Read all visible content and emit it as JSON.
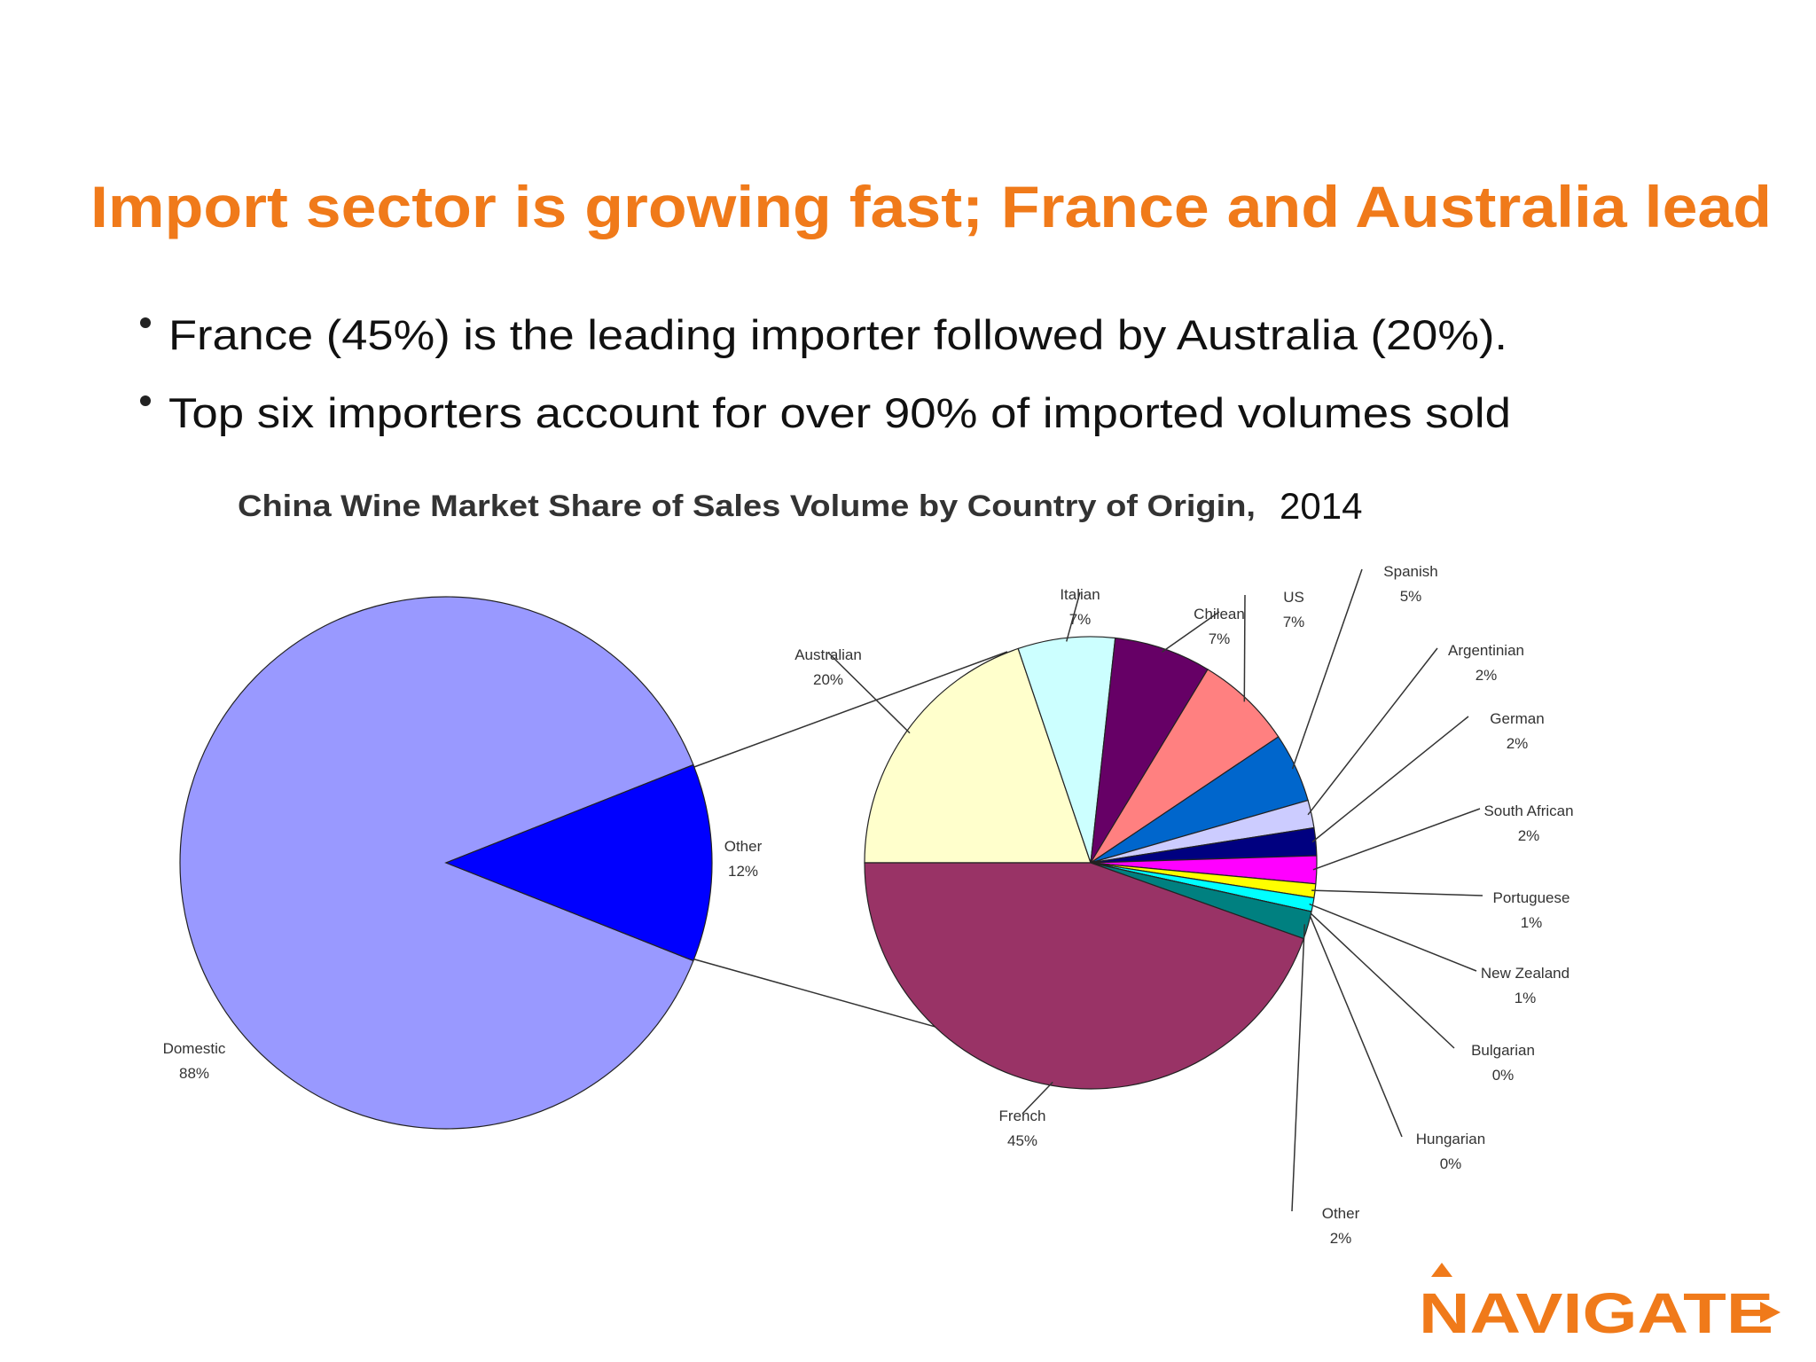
{
  "title": "Import sector is growing fast; France and Australia lead",
  "bullets": [
    "France (45%) is the leading importer followed by Australia (20%).",
    "Top six importers account for over 90% of imported volumes sold"
  ],
  "chart_data": [
    {
      "type": "pie",
      "title": "China Wine Market Share of Sales Volume by Country of Origin,",
      "subtitle": "2014",
      "categories": [
        "Domestic",
        "Other"
      ],
      "values": [
        88,
        12
      ],
      "value_labels": [
        "88%",
        "12%"
      ],
      "colors": [
        "#9999ff",
        "#0000ff"
      ]
    },
    {
      "type": "pie",
      "categories": [
        "Australian",
        "Italian",
        "Chilean",
        "US",
        "Spanish",
        "Argentinian",
        "German",
        "South African",
        "Portuguese",
        "New Zealand",
        "Bulgarian",
        "Hungarian",
        "Other",
        "French"
      ],
      "values": [
        20,
        7,
        7,
        7,
        5,
        2,
        2,
        2,
        1,
        1,
        0,
        0,
        2,
        45
      ],
      "value_labels": [
        "20%",
        "7%",
        "7%",
        "7%",
        "5%",
        "2%",
        "2%",
        "2%",
        "1%",
        "1%",
        "0%",
        "0%",
        "2%",
        "45%"
      ],
      "colors": [
        "#ffffcc",
        "#ccffff",
        "#660066",
        "#ff8080",
        "#0066cc",
        "#ccccff",
        "#000080",
        "#ff00ff",
        "#ffff00",
        "#00ffff",
        "#800080",
        "#800000",
        "#008080",
        "#993366"
      ]
    }
  ],
  "logo": "NAVIGATE"
}
